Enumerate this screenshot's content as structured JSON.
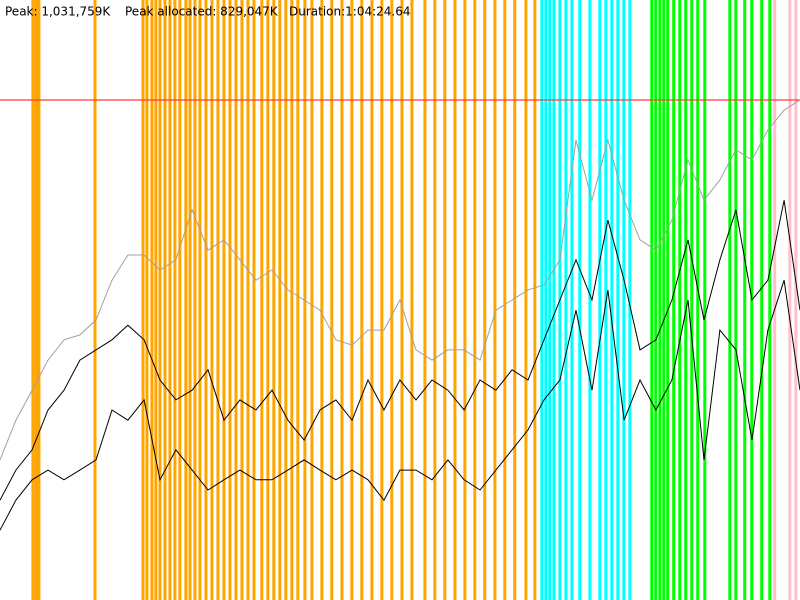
{
  "chart_data": {
    "type": "line",
    "annotations": [
      "Peak: 1,031,759K",
      "Peak allocated: 829,047K",
      "Duration:1:04:24.64"
    ],
    "xlim": [
      0,
      3865
    ],
    "ylim": [
      0,
      1238111
    ],
    "peak_line": {
      "value": 1031759,
      "color": "#ff3b3b"
    },
    "x": [
      0,
      77,
      155,
      232,
      309,
      386,
      464,
      541,
      618,
      696,
      773,
      850,
      928,
      1005,
      1082,
      1159,
      1237,
      1314,
      1391,
      1469,
      1546,
      1623,
      1701,
      1778,
      1855,
      1932,
      2010,
      2087,
      2164,
      2242,
      2319,
      2396,
      2474,
      2551,
      2628,
      2705,
      2783,
      2860,
      2937,
      3015,
      3092,
      3169,
      3246,
      3324,
      3401,
      3478,
      3556,
      3633,
      3710,
      3788,
      3865
    ],
    "series": [
      {
        "color": "#a0a0a0",
        "values": [
          289000,
          371000,
          433000,
          495000,
          537000,
          547000,
          578000,
          660000,
          712000,
          712000,
          681000,
          702000,
          805000,
          722000,
          743000,
          702000,
          660000,
          681000,
          640000,
          619000,
          598000,
          537000,
          526000,
          557000,
          557000,
          619000,
          516000,
          495000,
          516000,
          516000,
          495000,
          598000,
          619000,
          640000,
          650000,
          702000,
          949000,
          825000,
          949000,
          825000,
          743000,
          722000,
          784000,
          908000,
          825000,
          867000,
          929000,
          908000,
          970000,
          1011000,
          1032000
        ]
      },
      {
        "color": "#000000",
        "values": [
          206000,
          268000,
          310000,
          392000,
          433000,
          495000,
          516000,
          537000,
          567000,
          537000,
          454000,
          413000,
          433000,
          475000,
          371000,
          413000,
          392000,
          433000,
          371000,
          330000,
          392000,
          413000,
          371000,
          454000,
          392000,
          454000,
          413000,
          454000,
          433000,
          392000,
          454000,
          433000,
          475000,
          454000,
          537000,
          619000,
          702000,
          619000,
          784000,
          660000,
          516000,
          537000,
          619000,
          743000,
          578000,
          702000,
          805000,
          619000,
          660000,
          825000,
          598000
        ]
      },
      {
        "color": "#000000",
        "values": [
          144000,
          206000,
          248000,
          268000,
          248000,
          268000,
          289000,
          392000,
          371000,
          413000,
          248000,
          310000,
          268000,
          227000,
          248000,
          268000,
          248000,
          248000,
          268000,
          289000,
          268000,
          248000,
          268000,
          248000,
          206000,
          268000,
          268000,
          248000,
          289000,
          248000,
          227000,
          268000,
          310000,
          351000,
          413000,
          454000,
          598000,
          433000,
          640000,
          371000,
          454000,
          392000,
          454000,
          619000,
          289000,
          557000,
          516000,
          330000,
          557000,
          660000,
          433000
        ]
      }
    ],
    "events": [
      {
        "color": "#ffa500",
        "x": [
          159,
          174,
          188,
          459,
          691,
          710,
          734,
          753,
          773,
          797,
          821,
          845,
          869,
          898,
          918,
          942,
          966,
          995,
          1024,
          1053,
          1082,
          1111,
          1140,
          1169,
          1198,
          1227,
          1265,
          1294,
          1323,
          1352,
          1381,
          1410,
          1439,
          1473,
          1507,
          1555,
          1603,
          1652,
          1700,
          1748,
          1797,
          1845,
          1893,
          1942,
          1990,
          2053,
          2101,
          2149,
          2198,
          2246,
          2294,
          2342,
          2391,
          2439,
          2487,
          2541,
          2584
        ]
      },
      {
        "color": "#00ffff",
        "x": [
          2618,
          2637,
          2656,
          2676,
          2705,
          2734,
          2763,
          2801,
          2850,
          2898,
          2927,
          2956,
          2985,
          3014,
          3043
        ]
      },
      {
        "color": "#00ff00",
        "x": [
          3149,
          3168,
          3188,
          3207,
          3226,
          3255,
          3284,
          3313,
          3342,
          3371,
          3405,
          3526,
          3555,
          3598,
          3632,
          3680,
          3719
        ]
      },
      {
        "color": "#ffc0cb",
        "x": [
          3743,
          3816,
          3845
        ]
      }
    ]
  }
}
